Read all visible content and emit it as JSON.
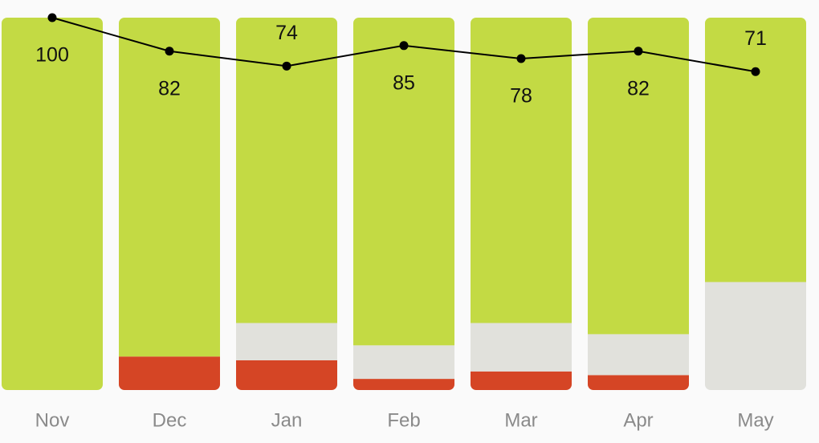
{
  "chart_data": {
    "type": "stacked-bar-line",
    "categories": [
      "Nov",
      "Dec",
      "Jan",
      "Feb",
      "Mar",
      "Apr",
      "May"
    ],
    "series": [
      {
        "color": "#d54525",
        "values": [
          0,
          9,
          8,
          3,
          5,
          4,
          0
        ]
      },
      {
        "color": "#e1e1dc",
        "values": [
          0,
          0,
          10,
          9,
          13,
          11,
          29
        ]
      },
      {
        "color": "#c3da44",
        "values": [
          100,
          91,
          82,
          88,
          82,
          85,
          71
        ]
      },
      {
        "type": "line",
        "axis": "y2",
        "color": "#000000",
        "values": [
          100,
          82,
          74,
          85,
          78,
          82,
          71
        ]
      }
    ],
    "ylim": [
      0,
      100
    ],
    "y2lim": [
      -100,
      100
    ]
  }
}
